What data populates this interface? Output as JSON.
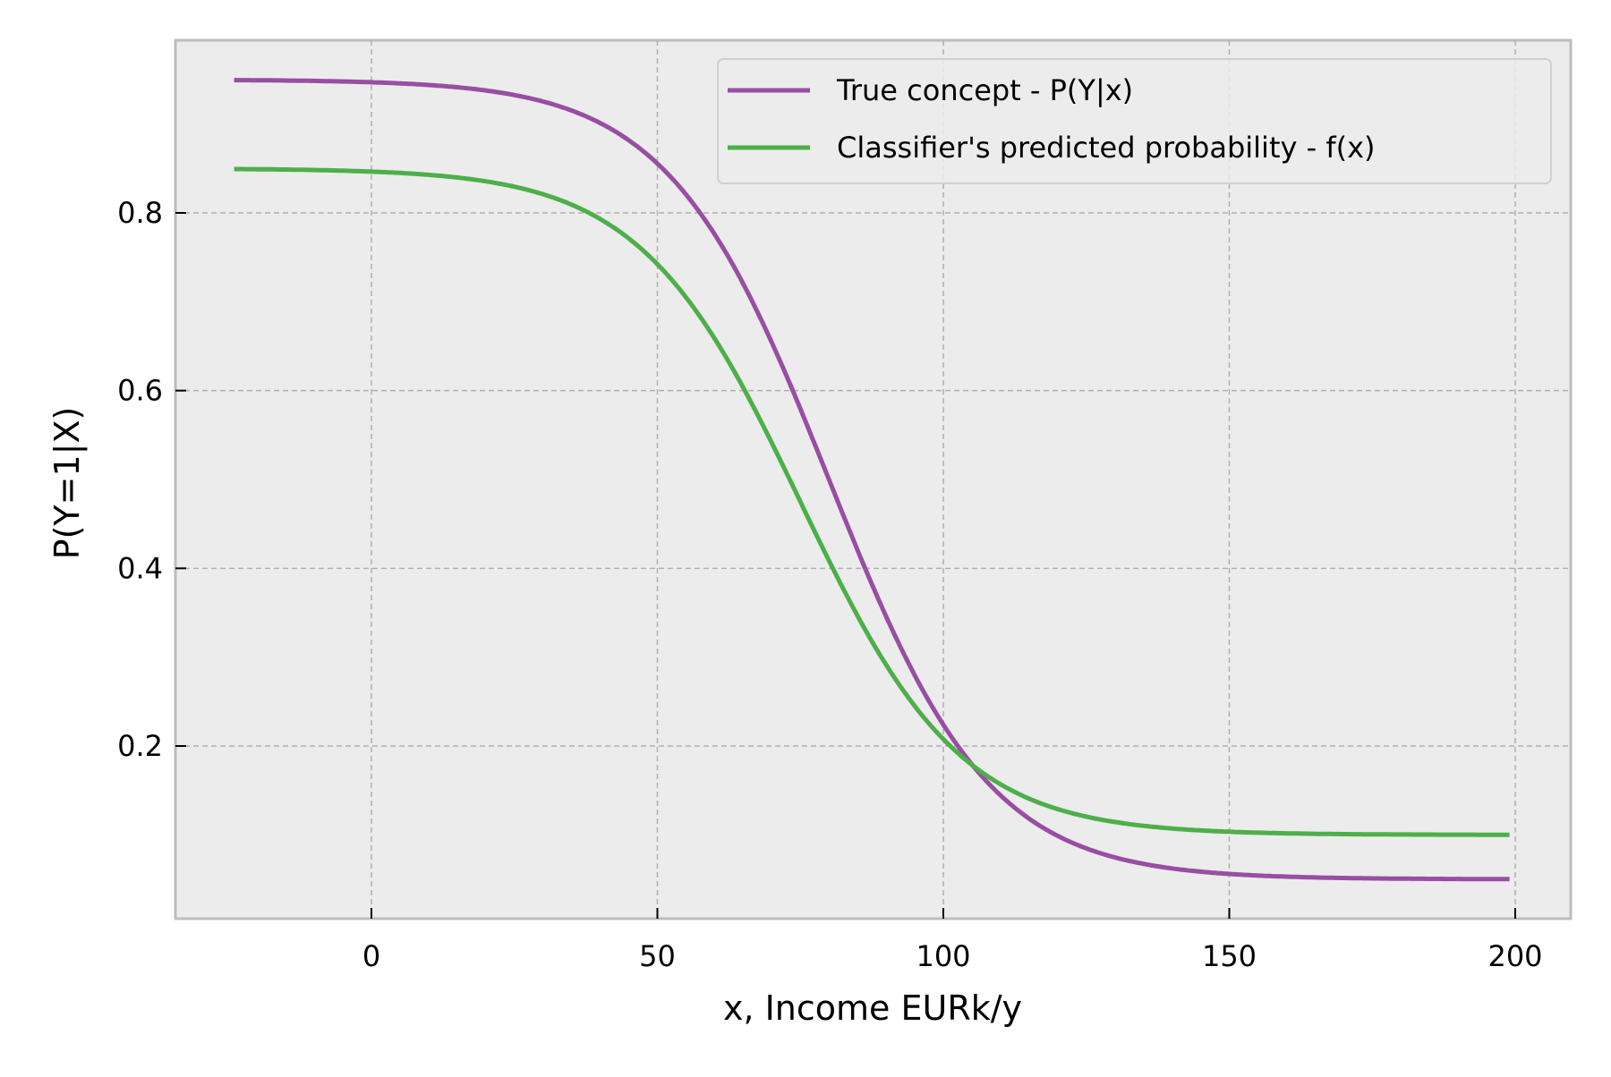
{
  "chart_data": {
    "type": "line",
    "title": "",
    "xlabel": "x, Income EURk/y",
    "ylabel": "P(Y=1|X)",
    "xlim": [
      -34,
      210
    ],
    "ylim": [
      0.006,
      0.995
    ],
    "xticks": [
      0,
      50,
      100,
      150,
      200
    ],
    "xtick_labels": [
      "0",
      "50",
      "100",
      "150",
      "200"
    ],
    "yticks": [
      0.2,
      0.4,
      0.6,
      0.8
    ],
    "ytick_labels": [
      "0.2",
      "0.4",
      "0.6",
      "0.8"
    ],
    "grid": true,
    "legend_position": "upper right",
    "background": "#ececec",
    "series": [
      {
        "name": "True concept - P(Y|x)",
        "color": "#984ea3",
        "model": "0.05 + 0.9 / (1 + exp((x - 80) / 14))",
        "x": [
          -24,
          0,
          20,
          40,
          50,
          60,
          70,
          75,
          80,
          85,
          90,
          100,
          110,
          120,
          140,
          160,
          180,
          199
        ],
        "values": [
          0.949,
          0.944,
          0.931,
          0.882,
          0.837,
          0.769,
          0.676,
          0.623,
          0.5,
          0.427,
          0.374,
          0.234,
          0.159,
          0.1,
          0.066,
          0.054,
          0.051,
          0.05
        ]
      },
      {
        "name": "Classifier's predicted probability - f(x)",
        "color": "#4daf4a",
        "model": "0.1 + 0.75 / (1 + exp((x - 75) / 14))",
        "x": [
          -24,
          0,
          20,
          40,
          50,
          60,
          70,
          75,
          80,
          85,
          90,
          100,
          110,
          120,
          140,
          160,
          180,
          199
        ],
        "values": [
          0.849,
          0.846,
          0.834,
          0.795,
          0.746,
          0.674,
          0.572,
          0.475,
          0.412,
          0.359,
          0.304,
          0.21,
          0.15,
          0.124,
          0.106,
          0.101,
          0.1,
          0.1
        ]
      }
    ]
  },
  "plot": {
    "x_start": -24,
    "x_end": 199,
    "params": [
      {
        "low": 0.05,
        "span": 0.9,
        "mid": 80,
        "k": 14
      },
      {
        "low": 0.1,
        "span": 0.75,
        "mid": 75,
        "k": 14
      }
    ]
  }
}
